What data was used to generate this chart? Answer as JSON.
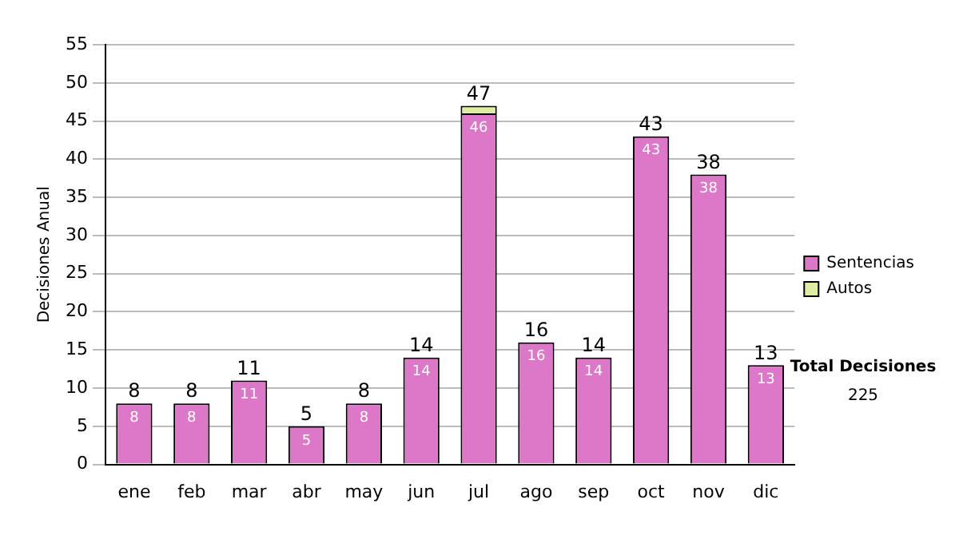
{
  "chart_data": {
    "type": "bar",
    "stacked": true,
    "ylabel": "Decisiones Anual",
    "categories": [
      "ene",
      "feb",
      "mar",
      "abr",
      "may",
      "jun",
      "jul",
      "ago",
      "sep",
      "oct",
      "nov",
      "dic"
    ],
    "series": [
      {
        "name": "Sentencias",
        "color": "#dd77c8",
        "values": [
          8,
          8,
          11,
          5,
          8,
          14,
          46,
          16,
          14,
          43,
          38,
          13
        ],
        "value_labels": [
          "8",
          "8",
          "11",
          "5",
          "8",
          "14",
          "46",
          "16",
          "14",
          "43",
          "38",
          "13"
        ]
      },
      {
        "name": "Autos",
        "color": "#ddeea0",
        "values": [
          0,
          0,
          0,
          0,
          0,
          0,
          1,
          0,
          0,
          0,
          0,
          0
        ]
      }
    ],
    "totals": [
      "8",
      "8",
      "11",
      "5",
      "8",
      "14",
      "47",
      "16",
      "14",
      "43",
      "38",
      "13"
    ],
    "ylim": [
      0,
      55
    ],
    "yticks": [
      0,
      5,
      10,
      15,
      20,
      25,
      30,
      35,
      40,
      45,
      50,
      55
    ],
    "grid": "y",
    "legend": "right",
    "annotations": [
      "Total Decisiones",
      "225"
    ]
  }
}
